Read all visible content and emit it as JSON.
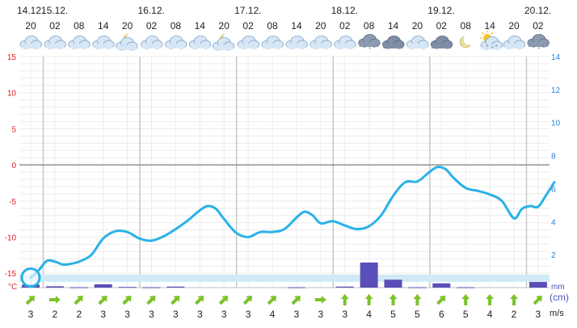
{
  "chart_data": {
    "type": "line",
    "dates": [
      {
        "label": "14.12.",
        "slot": 0
      },
      {
        "label": "15.12.",
        "slot": 1
      },
      {
        "label": "16.12.",
        "slot": 5
      },
      {
        "label": "17.12.",
        "slot": 9
      },
      {
        "label": "18.12.",
        "slot": 13
      },
      {
        "label": "19.12.",
        "slot": 17
      },
      {
        "label": "20.12.",
        "slot": 21
      }
    ],
    "hours": [
      "20",
      "02",
      "08",
      "14",
      "20",
      "02",
      "08",
      "14",
      "20",
      "02",
      "08",
      "14",
      "20",
      "02",
      "08",
      "14",
      "20",
      "02",
      "08",
      "14",
      "20",
      "02"
    ],
    "icons": [
      "cloud",
      "cloud",
      "cloud",
      "cloud",
      "cloud-moon",
      "cloud",
      "cloud",
      "cloud",
      "cloud-moon",
      "cloud",
      "cloud",
      "cloud",
      "cloud",
      "cloud",
      "snow-cloud",
      "dark-cloud",
      "cloud",
      "dark-cloud",
      "moon",
      "sun-snow",
      "cloud",
      "snow-cloud"
    ],
    "left_axis": {
      "unit": "°C",
      "ticks": [
        15,
        10,
        5,
        0,
        -5,
        -10,
        -15
      ]
    },
    "right_axis": {
      "ticks": [
        14,
        12,
        10,
        8,
        6,
        4,
        2
      ]
    },
    "temp_unit_label": "°C",
    "precip_unit_label": "mm",
    "snow_unit_label": "(cm)",
    "wind_unit_label": "m/s",
    "temperature": [
      {
        "x": 0,
        "y": -15.6
      },
      {
        "x": 0.33,
        "y": -14.6
      },
      {
        "x": 0.67,
        "y": -13.3
      },
      {
        "x": 1,
        "y": -13.4
      },
      {
        "x": 1.33,
        "y": -13.8
      },
      {
        "x": 1.67,
        "y": -13.7
      },
      {
        "x": 2,
        "y": -13.4
      },
      {
        "x": 2.5,
        "y": -12.5
      },
      {
        "x": 3,
        "y": -10.2
      },
      {
        "x": 3.5,
        "y": -9.2
      },
      {
        "x": 4,
        "y": -9.3
      },
      {
        "x": 4.5,
        "y": -10.2
      },
      {
        "x": 5,
        "y": -10.5
      },
      {
        "x": 5.5,
        "y": -9.9
      },
      {
        "x": 6,
        "y": -8.9
      },
      {
        "x": 6.5,
        "y": -7.7
      },
      {
        "x": 7,
        "y": -6.3
      },
      {
        "x": 7.33,
        "y": -5.7
      },
      {
        "x": 7.67,
        "y": -6.1
      },
      {
        "x": 8,
        "y": -7.5
      },
      {
        "x": 8.5,
        "y": -9.4
      },
      {
        "x": 9,
        "y": -10.0
      },
      {
        "x": 9.5,
        "y": -9.3
      },
      {
        "x": 10,
        "y": -9.3
      },
      {
        "x": 10.5,
        "y": -8.9
      },
      {
        "x": 11,
        "y": -7.3
      },
      {
        "x": 11.33,
        "y": -6.5
      },
      {
        "x": 11.67,
        "y": -7.0
      },
      {
        "x": 12,
        "y": -8.1
      },
      {
        "x": 12.5,
        "y": -7.8
      },
      {
        "x": 13,
        "y": -8.4
      },
      {
        "x": 13.5,
        "y": -8.9
      },
      {
        "x": 14,
        "y": -8.5
      },
      {
        "x": 14.5,
        "y": -7.0
      },
      {
        "x": 15,
        "y": -4.3
      },
      {
        "x": 15.5,
        "y": -2.4
      },
      {
        "x": 16,
        "y": -2.3
      },
      {
        "x": 16.5,
        "y": -1.0
      },
      {
        "x": 16.83,
        "y": -0.3
      },
      {
        "x": 17.17,
        "y": -0.6
      },
      {
        "x": 17.5,
        "y": -1.8
      },
      {
        "x": 18,
        "y": -3.2
      },
      {
        "x": 18.5,
        "y": -3.6
      },
      {
        "x": 19,
        "y": -4.1
      },
      {
        "x": 19.5,
        "y": -5.0
      },
      {
        "x": 20,
        "y": -7.4
      },
      {
        "x": 20.33,
        "y": -6.1
      },
      {
        "x": 20.67,
        "y": -5.7
      },
      {
        "x": 21,
        "y": -5.8
      },
      {
        "x": 21.33,
        "y": -4.2
      },
      {
        "x": 21.67,
        "y": -2.4
      }
    ],
    "precipitation": [
      {
        "x": 0,
        "y": 0.18
      },
      {
        "x": 1,
        "y": 0.08
      },
      {
        "x": 2,
        "y": 0.02
      },
      {
        "x": 3,
        "y": 0.2
      },
      {
        "x": 4,
        "y": 0.04
      },
      {
        "x": 5,
        "y": 0.02
      },
      {
        "x": 6,
        "y": 0.06
      },
      {
        "x": 11,
        "y": 0.02
      },
      {
        "x": 13,
        "y": 0.06
      },
      {
        "x": 14,
        "y": 1.52
      },
      {
        "x": 15,
        "y": 0.48
      },
      {
        "x": 16,
        "y": 0.02
      },
      {
        "x": 17,
        "y": 0.26
      },
      {
        "x": 18,
        "y": 0.02
      },
      {
        "x": 21,
        "y": 0.34
      }
    ],
    "wind": [
      {
        "speed": "3",
        "dir": 45
      },
      {
        "speed": "2",
        "dir": 90
      },
      {
        "speed": "2",
        "dir": 45
      },
      {
        "speed": "3",
        "dir": 45
      },
      {
        "speed": "3",
        "dir": 45
      },
      {
        "speed": "3",
        "dir": 45
      },
      {
        "speed": "3",
        "dir": 45
      },
      {
        "speed": "3",
        "dir": 45
      },
      {
        "speed": "3",
        "dir": 45
      },
      {
        "speed": "3",
        "dir": 45
      },
      {
        "speed": "4",
        "dir": 45
      },
      {
        "speed": "3",
        "dir": 45
      },
      {
        "speed": "3",
        "dir": 90
      },
      {
        "speed": "3",
        "dir": 0
      },
      {
        "speed": "4",
        "dir": 0
      },
      {
        "speed": "5",
        "dir": 0
      },
      {
        "speed": "5",
        "dir": 0
      },
      {
        "speed": "6",
        "dir": 45
      },
      {
        "speed": "5",
        "dir": 0
      },
      {
        "speed": "4",
        "dir": 0
      },
      {
        "speed": "2",
        "dir": 0
      },
      {
        "speed": "3",
        "dir": 45
      }
    ],
    "current_marker": {
      "x": 0,
      "y": -15.6
    },
    "colors": {
      "temperature": "#29b2e8",
      "precipitation": "#5a4fb8",
      "left_axis": "#e0202a",
      "right_axis": "#2a7fd4",
      "zero_line": "#8a8a8a",
      "band": "#cfeaf7",
      "wind_arrow": "#7cc22a"
    },
    "ranges": {
      "temp": [
        -17,
        15
      ],
      "precip": [
        0,
        14
      ]
    },
    "grid": true
  }
}
